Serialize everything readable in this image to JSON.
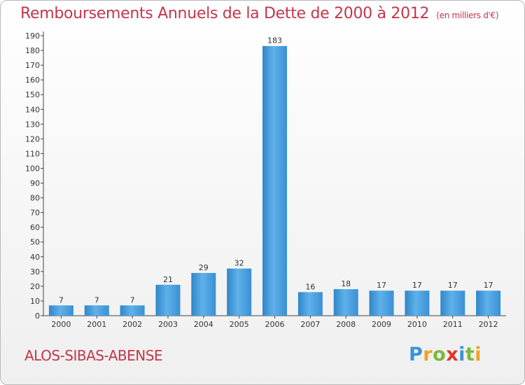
{
  "header": {
    "title": "Remboursements Annuels de la Dette de 2000 à 2012",
    "subtitle": "(en milliers d'€)"
  },
  "footer": {
    "commune": "ALOS-SIBAS-ABENSE",
    "logo": "Proxiti"
  },
  "colors": {
    "bar": "#3f97d9",
    "bar_highlight": "#6ab8ec",
    "title": "#c4364a"
  },
  "chart_data": {
    "type": "bar",
    "title": "Remboursements Annuels de la Dette de 2000 à 2012",
    "subtitle": "(en milliers d'€)",
    "categories": [
      "2000",
      "2001",
      "2002",
      "2003",
      "2004",
      "2005",
      "2006",
      "2007",
      "2008",
      "2009",
      "2010",
      "2011",
      "2012"
    ],
    "values": [
      7,
      7,
      7,
      21,
      29,
      32,
      183,
      16,
      18,
      17,
      17,
      17,
      17
    ],
    "ylim": [
      0,
      190
    ],
    "ytick_step": 10,
    "grid": false,
    "data_labels": true
  }
}
